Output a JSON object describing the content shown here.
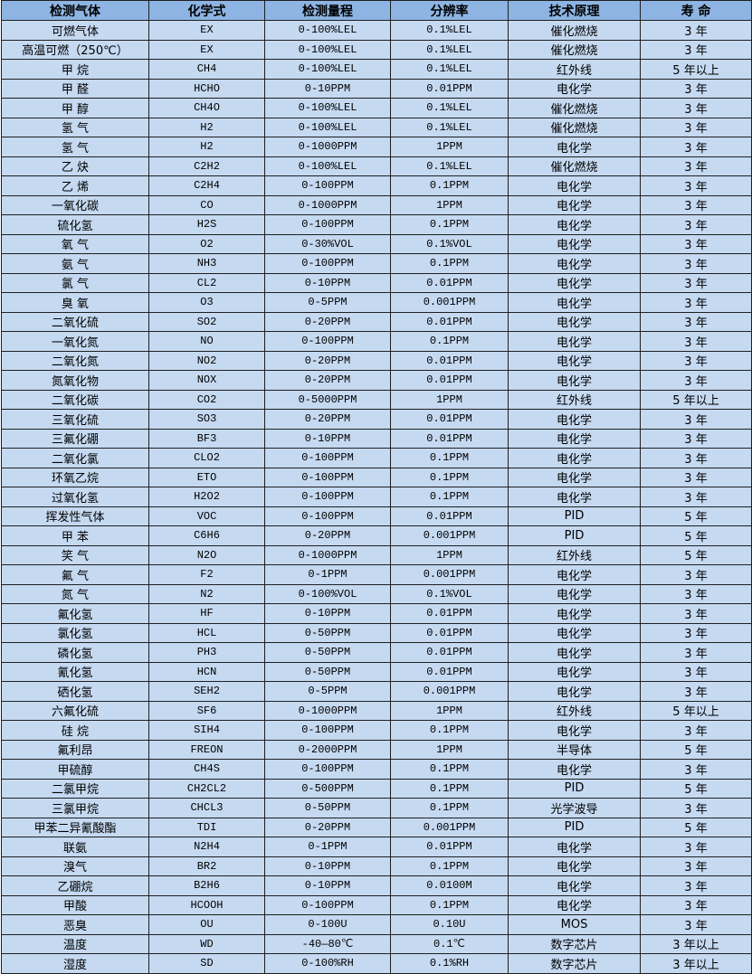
{
  "colors": {
    "header_bg": "#8db4e2",
    "row_bg": "#c5d9f1",
    "border": "#1f1f1f"
  },
  "table": {
    "headers": [
      "检测气体",
      "化学式",
      "检测量程",
      "分辨率",
      "技术原理",
      "寿 命"
    ],
    "rows": [
      [
        "可燃气体",
        "EX",
        "0-100%LEL",
        "0.1%LEL",
        "催化燃烧",
        "3 年"
      ],
      [
        "高温可燃（250℃）",
        "EX",
        "0-100%LEL",
        "0.1%LEL",
        "催化燃烧",
        "3 年"
      ],
      [
        "甲 烷",
        "CH4",
        "0-100%LEL",
        "0.1%LEL",
        "红外线",
        "5 年以上"
      ],
      [
        "甲 醛",
        "HCHO",
        "0-10PPM",
        "0.01PPM",
        "电化学",
        "3 年"
      ],
      [
        "甲 醇",
        "CH4O",
        "0-100%LEL",
        "0.1%LEL",
        "催化燃烧",
        "3 年"
      ],
      [
        "氢 气",
        "H2",
        "0-100%LEL",
        "0.1%LEL",
        "催化燃烧",
        "3 年"
      ],
      [
        "氢 气",
        "H2",
        "0-1000PPM",
        "1PPM",
        "电化学",
        "3 年"
      ],
      [
        "乙 炔",
        "C2H2",
        "0-100%LEL",
        "0.1%LEL",
        "催化燃烧",
        "3 年"
      ],
      [
        "乙 烯",
        "C2H4",
        "0-100PPM",
        "0.1PPM",
        "电化学",
        "3 年"
      ],
      [
        "一氧化碳",
        "CO",
        "0-1000PPM",
        "1PPM",
        "电化学",
        "3 年"
      ],
      [
        "硫化氢",
        "H2S",
        "0-100PPM",
        "0.1PPM",
        "电化学",
        "3 年"
      ],
      [
        "氧 气",
        "O2",
        "0-30%VOL",
        "0.1%VOL",
        "电化学",
        "3 年"
      ],
      [
        "氨 气",
        "NH3",
        "0-100PPM",
        "0.1PPM",
        "电化学",
        "3 年"
      ],
      [
        "氯 气",
        "CL2",
        "0-10PPM",
        "0.01PPM",
        "电化学",
        "3 年"
      ],
      [
        "臭 氧",
        "O3",
        "0-5PPM",
        "0.001PPM",
        "电化学",
        "3 年"
      ],
      [
        "二氧化硫",
        "SO2",
        "0-20PPM",
        "0.01PPM",
        "电化学",
        "3 年"
      ],
      [
        "一氧化氮",
        "NO",
        "0-100PPM",
        "0.1PPM",
        "电化学",
        "3 年"
      ],
      [
        "二氧化氮",
        "NO2",
        "0-20PPM",
        "0.01PPM",
        "电化学",
        "3 年"
      ],
      [
        "氮氧化物",
        "NOX",
        "0-20PPM",
        "0.01PPM",
        "电化学",
        "3 年"
      ],
      [
        "二氧化碳",
        "CO2",
        "0-5000PPM",
        "1PPM",
        "红外线",
        "5 年以上"
      ],
      [
        "三氧化硫",
        "SO3",
        "0-20PPM",
        "0.01PPM",
        "电化学",
        "3 年"
      ],
      [
        "三氟化硼",
        "BF3",
        "0-10PPM",
        "0.01PPM",
        "电化学",
        "3 年"
      ],
      [
        "二氧化氯",
        "CLO2",
        "0-100PPM",
        "0.1PPM",
        "电化学",
        "3 年"
      ],
      [
        "环氧乙烷",
        "ETO",
        "0-100PPM",
        "0.1PPM",
        "电化学",
        "3 年"
      ],
      [
        "过氧化氢",
        "H2O2",
        "0-100PPM",
        "0.1PPM",
        "电化学",
        "3 年"
      ],
      [
        "挥发性气体",
        "VOC",
        "0-100PPM",
        "0.01PPM",
        "PID",
        "5 年"
      ],
      [
        "甲 苯",
        "C6H6",
        "0-20PPM",
        "0.001PPM",
        "PID",
        "5 年"
      ],
      [
        "笑 气",
        "N2O",
        "0-1000PPM",
        "1PPM",
        "红外线",
        "5 年"
      ],
      [
        "氟 气",
        "F2",
        "0-1PPM",
        "0.001PPM",
        "电化学",
        "3 年"
      ],
      [
        "氮 气",
        "N2",
        "0-100%VOL",
        "0.1%VOL",
        "电化学",
        "3 年"
      ],
      [
        "氟化氢",
        "HF",
        "0-10PPM",
        "0.01PPM",
        "电化学",
        "3 年"
      ],
      [
        "氯化氢",
        "HCL",
        "0-50PPM",
        "0.01PPM",
        "电化学",
        "3 年"
      ],
      [
        "磷化氢",
        "PH3",
        "0-50PPM",
        "0.01PPM",
        "电化学",
        "3 年"
      ],
      [
        "氰化氢",
        "HCN",
        "0-50PPM",
        "0.01PPM",
        "电化学",
        "3 年"
      ],
      [
        "硒化氢",
        "SEH2",
        "0-5PPM",
        "0.001PPM",
        "电化学",
        "3 年"
      ],
      [
        "六氟化硫",
        "SF6",
        "0-1000PPM",
        "1PPM",
        "红外线",
        "5 年以上"
      ],
      [
        "硅 烷",
        "SIH4",
        "0-100PPM",
        "0.1PPM",
        "电化学",
        "3 年"
      ],
      [
        "氟利昂",
        "FREON",
        "0-2000PPM",
        "1PPM",
        "半导体",
        "5 年"
      ],
      [
        "甲硫醇",
        "CH4S",
        "0-100PPM",
        "0.1PPM",
        "电化学",
        "3 年"
      ],
      [
        "二氯甲烷",
        "CH2CL2",
        "0-500PPM",
        "0.1PPM",
        "PID",
        "5 年"
      ],
      [
        "三氯甲烷",
        "CHCL3",
        "0-50PPM",
        "0.1PPM",
        "光学波导",
        "3 年"
      ],
      [
        "甲苯二异氰酸酯",
        "TDI",
        "0-20PPM",
        "0.001PPM",
        "PID",
        "5 年"
      ],
      [
        "联氨",
        "N2H4",
        "0-1PPM",
        "0.01PPM",
        "电化学",
        "3 年"
      ],
      [
        "溴气",
        "BR2",
        "0-10PPM",
        "0.1PPM",
        "电化学",
        "3 年"
      ],
      [
        "乙硼烷",
        "B2H6",
        "0-10PPM",
        "0.0100M",
        "电化学",
        "3 年"
      ],
      [
        "甲酸",
        "HCOOH",
        "0-100PPM",
        "0.1PPM",
        "电化学",
        "3 年"
      ],
      [
        "恶臭",
        "OU",
        "0-100U",
        "0.10U",
        "MOS",
        "3 年"
      ],
      [
        "温度",
        "WD",
        "-40—80℃",
        "0.1℃",
        "数字芯片",
        "3 年以上"
      ],
      [
        "湿度",
        "SD",
        "0-100%RH",
        "0.1%RH",
        "数字芯片",
        "3 年以上"
      ]
    ]
  }
}
